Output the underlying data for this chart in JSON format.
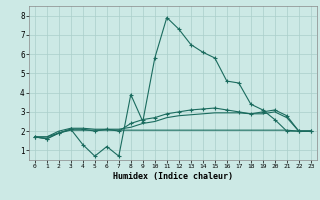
{
  "xlabel": "Humidex (Indice chaleur)",
  "xlim": [
    -0.5,
    23.5
  ],
  "ylim": [
    0.5,
    8.5
  ],
  "xticks": [
    0,
    1,
    2,
    3,
    4,
    5,
    6,
    7,
    8,
    9,
    10,
    11,
    12,
    13,
    14,
    15,
    16,
    17,
    18,
    19,
    20,
    21,
    22,
    23
  ],
  "yticks": [
    1,
    2,
    3,
    4,
    5,
    6,
    7,
    8
  ],
  "bg_color": "#cce9e5",
  "grid_color": "#aacfca",
  "line_color": "#1a6b5e",
  "series1": [
    1.7,
    1.6,
    1.9,
    2.1,
    1.3,
    0.7,
    1.2,
    0.7,
    3.9,
    2.5,
    5.8,
    7.9,
    7.3,
    6.5,
    6.1,
    5.8,
    4.6,
    4.5,
    3.4,
    3.1,
    2.6,
    2.0,
    2.0,
    2.0
  ],
  "series2": [
    1.7,
    1.6,
    1.9,
    2.1,
    2.1,
    2.0,
    2.1,
    2.0,
    2.4,
    2.6,
    2.7,
    2.9,
    3.0,
    3.1,
    3.15,
    3.2,
    3.1,
    3.0,
    2.9,
    3.0,
    3.1,
    2.8,
    2.0,
    2.0
  ],
  "series3": [
    1.7,
    1.7,
    2.0,
    2.15,
    2.15,
    2.1,
    2.1,
    2.1,
    2.2,
    2.4,
    2.5,
    2.7,
    2.8,
    2.85,
    2.9,
    2.95,
    2.95,
    2.95,
    2.9,
    2.9,
    3.0,
    2.7,
    2.0,
    2.0
  ],
  "series4": [
    1.7,
    1.7,
    1.9,
    2.05,
    2.05,
    2.05,
    2.05,
    2.05,
    2.05,
    2.05,
    2.05,
    2.05,
    2.05,
    2.05,
    2.05,
    2.05,
    2.05,
    2.05,
    2.05,
    2.05,
    2.05,
    2.05,
    2.0,
    2.0
  ]
}
